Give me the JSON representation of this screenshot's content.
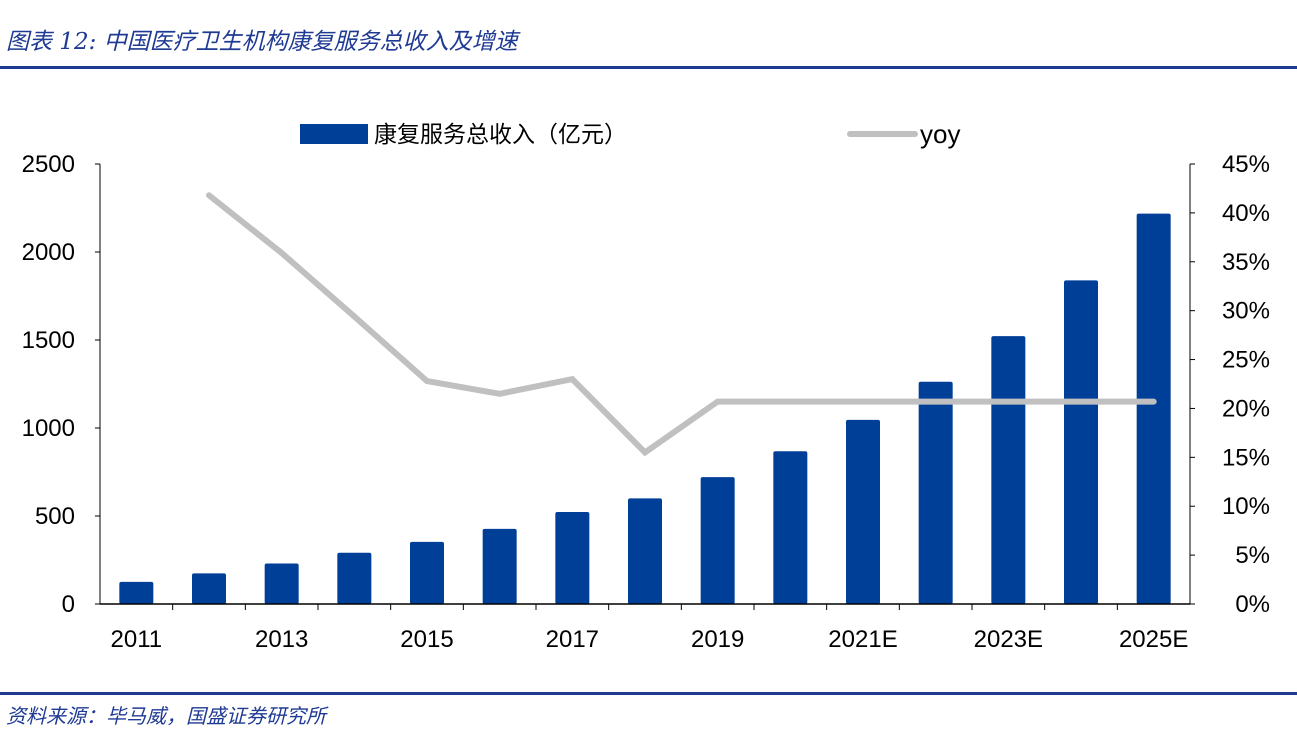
{
  "title": "图表 12:  中国医疗卫生机构康复服务总收入及增速",
  "source": "资料来源：毕马威，国盛证券研究所",
  "colors": {
    "bar": "#003f98",
    "line": "#c0c0c0",
    "accent": "#1f3a93"
  },
  "chart_data": {
    "type": "bar+line",
    "categories": [
      "2011",
      "2012",
      "2013",
      "2014",
      "2015",
      "2016",
      "2017",
      "2018",
      "2019",
      "2020",
      "2021E",
      "2022E",
      "2023E",
      "2024E",
      "2025E"
    ],
    "x_tick_labels": [
      "2011",
      "2013",
      "2015",
      "2017",
      "2019",
      "2021E",
      "2023E",
      "2025E"
    ],
    "series": [
      {
        "name": "康复服务总收入（亿元）",
        "type": "bar",
        "axis": "left",
        "values": [
          126,
          174,
          230,
          291,
          353,
          427,
          523,
          600,
          721,
          868,
          1046,
          1263,
          1522,
          1839,
          2218
        ]
      },
      {
        "name": "yoy",
        "type": "line",
        "axis": "right",
        "values": [
          null,
          41.8,
          35.9,
          29.4,
          22.8,
          21.5,
          23.0,
          15.5,
          20.7,
          20.7,
          20.7,
          20.7,
          20.7,
          20.7,
          20.7
        ]
      }
    ],
    "y_left": {
      "range": [
        0,
        2500
      ],
      "ticks": [
        "0",
        "500",
        "1000",
        "1500",
        "2000",
        "2500"
      ]
    },
    "y_right": {
      "range": [
        0,
        45
      ],
      "ticks": [
        "0%",
        "5%",
        "10%",
        "15%",
        "20%",
        "25%",
        "30%",
        "35%",
        "40%",
        "45%"
      ]
    },
    "legend_position": "top",
    "grid": false
  }
}
